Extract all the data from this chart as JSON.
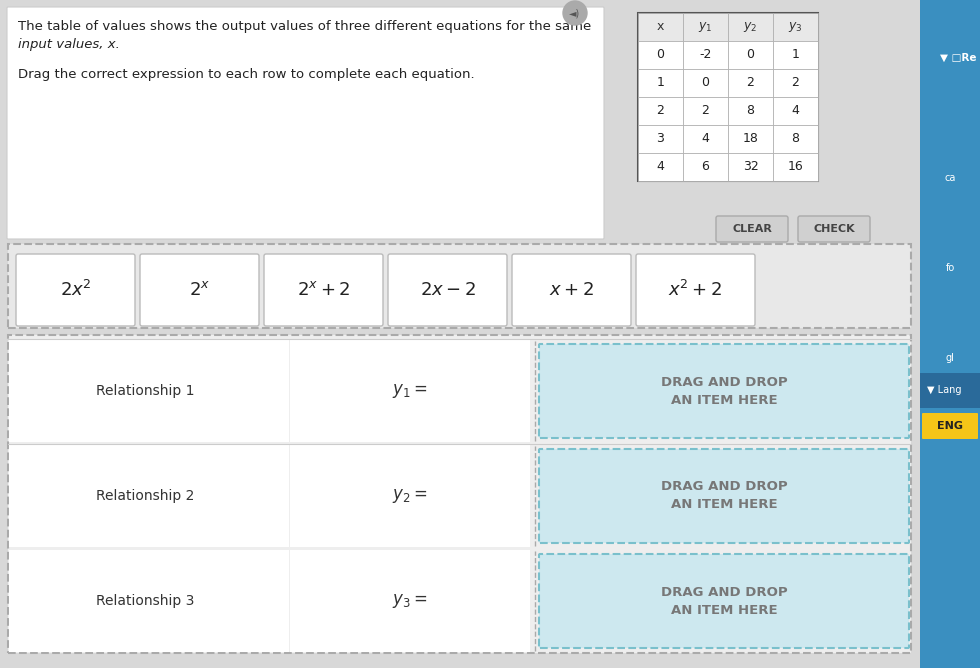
{
  "bg_color": "#d8d8d8",
  "top_panel_bg": "white",
  "top_panel_text1": "The table of values shows the output values of three different equations for the same",
  "top_panel_text2": "input values, x.",
  "drag_text": "Drag the correct expression to each row to complete each equation.",
  "table_headers": [
    "x",
    "$y_1$",
    "$y_2$",
    "$y_3$"
  ],
  "table_data": [
    [
      0,
      -2,
      0,
      1
    ],
    [
      1,
      0,
      2,
      2
    ],
    [
      2,
      2,
      8,
      4
    ],
    [
      3,
      4,
      18,
      8
    ],
    [
      4,
      6,
      32,
      16
    ]
  ],
  "expressions_math": [
    "$2x^2$",
    "$2^x$",
    "$2^x+2$",
    "$2x-2$",
    "$x+2$",
    "$x^2+2$"
  ],
  "relationships": [
    "Relationship 1",
    "Relationship 2",
    "Relationship 3"
  ],
  "y_labels": [
    "$y_1 =$",
    "$y_2 =$",
    "$y_3 =$"
  ],
  "drag_drop_text": "DRAG AND DROP\nAN ITEM HERE",
  "button_clear": "CLEAR",
  "button_check": "CHECK",
  "right_panel_color": "#3a8fc0",
  "right_panel_dark": "#2a6a9a",
  "drop_zone_bg": "#cde8ef",
  "drop_zone_border": "#7ac0cc",
  "table_outer_border": "#555555",
  "table_inner_border": "#aaaaaa",
  "table_header_bg": "#e8e8e8",
  "table_cell_bg": "white",
  "tile_bg": "white",
  "tile_border": "#bbbbbb",
  "tile_area_bg": "#e8e8e8",
  "tile_area_border": "#aaaaaa",
  "rel_area_bg": "#eeeeee",
  "rel_left_bg": "#ebebeb",
  "rel_mid_bg": "#e8e8e8",
  "separator_color": "#cccccc",
  "button_bg": "#d0d0d0",
  "button_border": "#aaaaaa",
  "yellow_btn": "#f5c518",
  "speaker_bg": "#888888"
}
